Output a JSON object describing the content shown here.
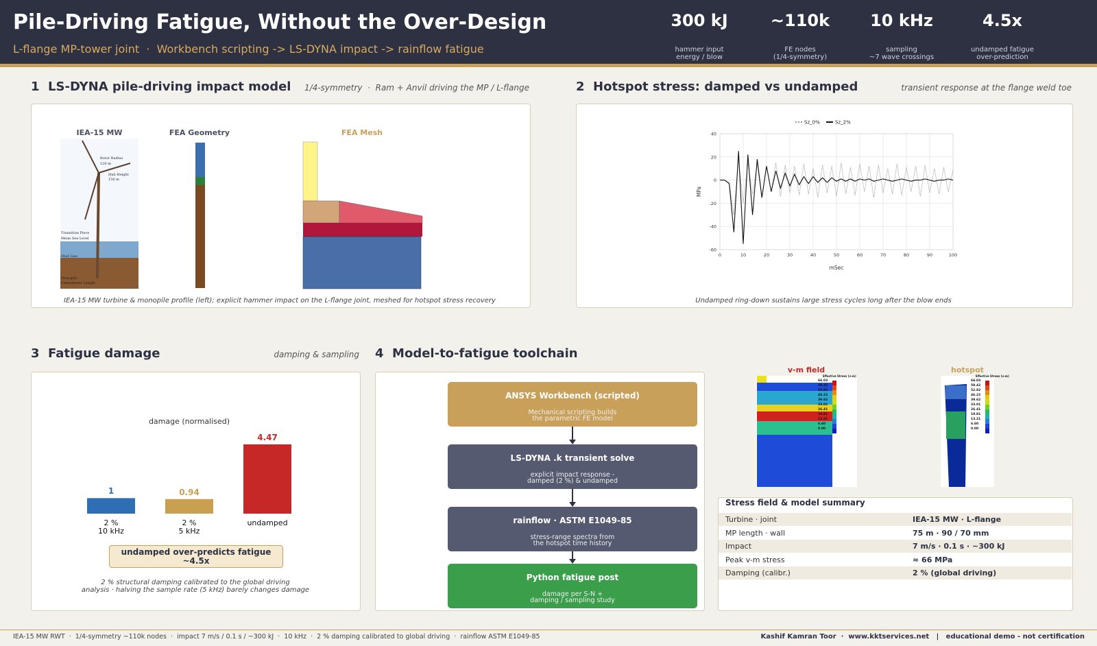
{
  "header": {
    "title": "Pile-Driving Fatigue, Without the Over-Design",
    "subtitle": "L-flange MP-tower joint  ·  Workbench scripting -> LS-DYNA impact -> rainflow fatigue",
    "kpis": [
      {
        "value": "300 kJ",
        "label": "hammer input\nenergy / blow"
      },
      {
        "value": "~110k",
        "label": "FE nodes\n(1/4-symmetry)"
      },
      {
        "value": "10 kHz",
        "label": "sampling\n~7 wave crossings"
      },
      {
        "value": "4.5x",
        "label": "undamped fatigue\nover-prediction"
      }
    ]
  },
  "panel1": {
    "title": "1  LS-DYNA pile-driving impact model",
    "subtitle": "1/4-symmetry  ·  Ram + Anvil driving the MP / L-flange",
    "figures": [
      "IEA-15 MW",
      "FEA Geometry",
      "FEA Mesh"
    ],
    "turbine_labels": [
      "Rotor Radius",
      "120 m",
      "Hub Height",
      "150 m",
      "Transition Piece",
      "Mean Sea Level",
      "Mud Line",
      "Monopile",
      "Embedment Length"
    ],
    "caption": "IEA-15 MW turbine & monopile profile (left); explicit hammer impact on the L-flange joint, meshed for hotspot stress recovery"
  },
  "panel2": {
    "title": "2  Hotspot stress: damped vs undamped",
    "subtitle": "transient response at the flange weld toe",
    "caption": "Undamped ring-down sustains large stress cycles long after the blow ends"
  },
  "panel3": {
    "title": "3  Fatigue damage",
    "subtitle": "damping & sampling",
    "badge": "undamped over-predicts fatigue ~4.5x",
    "caption": "2 % structural damping calibrated to the global driving\nanalysis  ·  halving the sample rate (5 kHz) barely changes damage"
  },
  "panel4": {
    "title": "4  Model-to-fatigue toolchain",
    "steps": [
      {
        "title": "ANSYS Workbench (scripted)",
        "text": "Mechanical scripting builds\nthe parametric FE model"
      },
      {
        "title": "LS-DYNA .k transient solve",
        "text": "explicit impact response -\ndamped (2 %) & undamped"
      },
      {
        "title": "rainflow  ·  ASTM E1049-85",
        "text": "stress-range spectra from\nthe hotspot time history"
      },
      {
        "title": "Python fatigue post",
        "text": "damage per S-N +\ndamping / sampling study"
      }
    ],
    "fields": [
      "v-m field",
      "hotspot"
    ],
    "legend_title": "Effective Stress (v-m)",
    "legend_values": [
      "66.03",
      "59.42",
      "52.82",
      "46.22",
      "39.62",
      "33.01",
      "26.41",
      "19.81",
      "13.21",
      "6.60",
      "0.00"
    ],
    "summary": {
      "title": "Stress field & model summary",
      "rows": [
        [
          "Turbine · joint",
          "IEA-15 MW · L-flange"
        ],
        [
          "MP length · wall",
          "75 m · 90 / 70 mm"
        ],
        [
          "Impact",
          "7 m/s · 0.1 s · ~300 kJ"
        ],
        [
          "Peak v-m stress",
          "≈ 66 MPa"
        ],
        [
          "Damping (calibr.)",
          "2 % (global driving)"
        ]
      ]
    }
  },
  "chart_data": [
    {
      "type": "line",
      "xlabel": "mSec",
      "ylabel": "MPa",
      "x": [
        0,
        2,
        4,
        6,
        8,
        10,
        12,
        14,
        16,
        18,
        20,
        22,
        24,
        26,
        28,
        30,
        32,
        34,
        36,
        38,
        40,
        42,
        44,
        46,
        48,
        50,
        52,
        54,
        56,
        58,
        60,
        62,
        64,
        66,
        68,
        70,
        72,
        74,
        76,
        78,
        80,
        82,
        84,
        86,
        88,
        90,
        92,
        94,
        96,
        98,
        100
      ],
      "series": [
        {
          "name": "Sz_0%",
          "color": "#9a9a9a",
          "dash": "dotted",
          "values": [
            0,
            0,
            -2,
            -30,
            18,
            -20,
            15,
            -12,
            14,
            -16,
            12,
            -10,
            15,
            -14,
            13,
            -11,
            12,
            -13,
            14,
            -12,
            10,
            -15,
            13,
            -11,
            12,
            -14,
            15,
            -12,
            11,
            -13,
            14,
            -10,
            12,
            -15,
            13,
            -11,
            10,
            -12,
            14,
            -13,
            11,
            -10,
            12,
            -14,
            13,
            -11,
            10,
            -12,
            11,
            -10,
            9
          ]
        },
        {
          "name": "Sz_2%",
          "color": "#111111",
          "values": [
            0,
            0,
            -3,
            -45,
            25,
            -55,
            22,
            -30,
            18,
            -15,
            12,
            -10,
            8,
            -7,
            6,
            -5,
            5,
            -4,
            3,
            -3,
            3,
            -2,
            2,
            -2,
            2,
            -1,
            1,
            -1,
            1,
            -1,
            1,
            0,
            1,
            -1,
            0,
            1,
            0,
            -1,
            0,
            1,
            0,
            -1,
            0,
            0,
            1,
            0,
            -1,
            0,
            0,
            1,
            0
          ]
        }
      ],
      "xlim": [
        0,
        100
      ],
      "xticks": [
        0,
        10,
        20,
        30,
        40,
        50,
        60,
        70,
        80,
        90,
        100
      ],
      "ylim": [
        -60,
        40
      ],
      "yticks": [
        -60,
        -40,
        -20,
        0,
        20,
        40
      ],
      "grid": true
    },
    {
      "type": "bar",
      "title": "damage (normalised)",
      "categories": [
        "2 %\n10 kHz",
        "2 %\n5 kHz",
        "undamped"
      ],
      "values": [
        1,
        0.94,
        4.47
      ],
      "colors": [
        "#2f6db5",
        "#c8a050",
        "#c62828"
      ]
    }
  ],
  "footer": {
    "left": "IEA-15 MW RWT  ·  1/4-symmetry ~110k nodes  ·  impact 7 m/s / 0.1 s / ~300 kJ  ·  10 kHz  ·  2 % damping calibrated to global driving  ·  rainflow ASTM E1049-85",
    "right": "Kashif Kamran Toor  ·  www.kktservices.net   |   educational demo - not certification"
  }
}
